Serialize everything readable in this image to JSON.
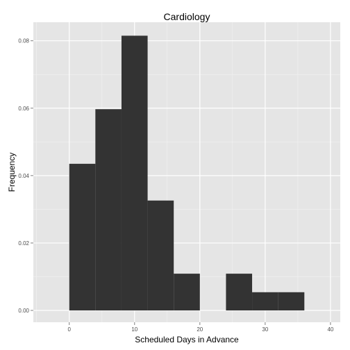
{
  "chart_data": {
    "type": "bar",
    "title": "Cardiology",
    "xlabel": "Scheduled Days in Advance",
    "ylabel": "Frequency",
    "xlim": [
      -5.5,
      41.5
    ],
    "ylim": [
      -0.0035,
      0.0855
    ],
    "x_ticks": [
      0,
      10,
      20,
      30,
      40
    ],
    "x_tick_labels": [
      "0",
      "10",
      "20",
      "30",
      "40"
    ],
    "y_ticks": [
      0,
      0.02,
      0.04,
      0.06,
      0.08
    ],
    "y_tick_labels": [
      "0.00",
      "0.02",
      "0.04",
      "0.06",
      "0.08"
    ],
    "grid": true,
    "bin_width": 4,
    "bins": [
      {
        "start": 0,
        "end": 4,
        "value": 0.0435
      },
      {
        "start": 4,
        "end": 8,
        "value": 0.0597
      },
      {
        "start": 8,
        "end": 12,
        "value": 0.0815
      },
      {
        "start": 12,
        "end": 16,
        "value": 0.0326
      },
      {
        "start": 16,
        "end": 20,
        "value": 0.0109
      },
      {
        "start": 20,
        "end": 24,
        "value": 0
      },
      {
        "start": 24,
        "end": 28,
        "value": 0.0109
      },
      {
        "start": 28,
        "end": 32,
        "value": 0.0054
      },
      {
        "start": 32,
        "end": 36,
        "value": 0.0054
      }
    ],
    "colors": {
      "panel": "#e5e5e5",
      "grid_major": "#ffffff",
      "grid_minor": "#f2f2f2",
      "bar": "#333333"
    }
  }
}
